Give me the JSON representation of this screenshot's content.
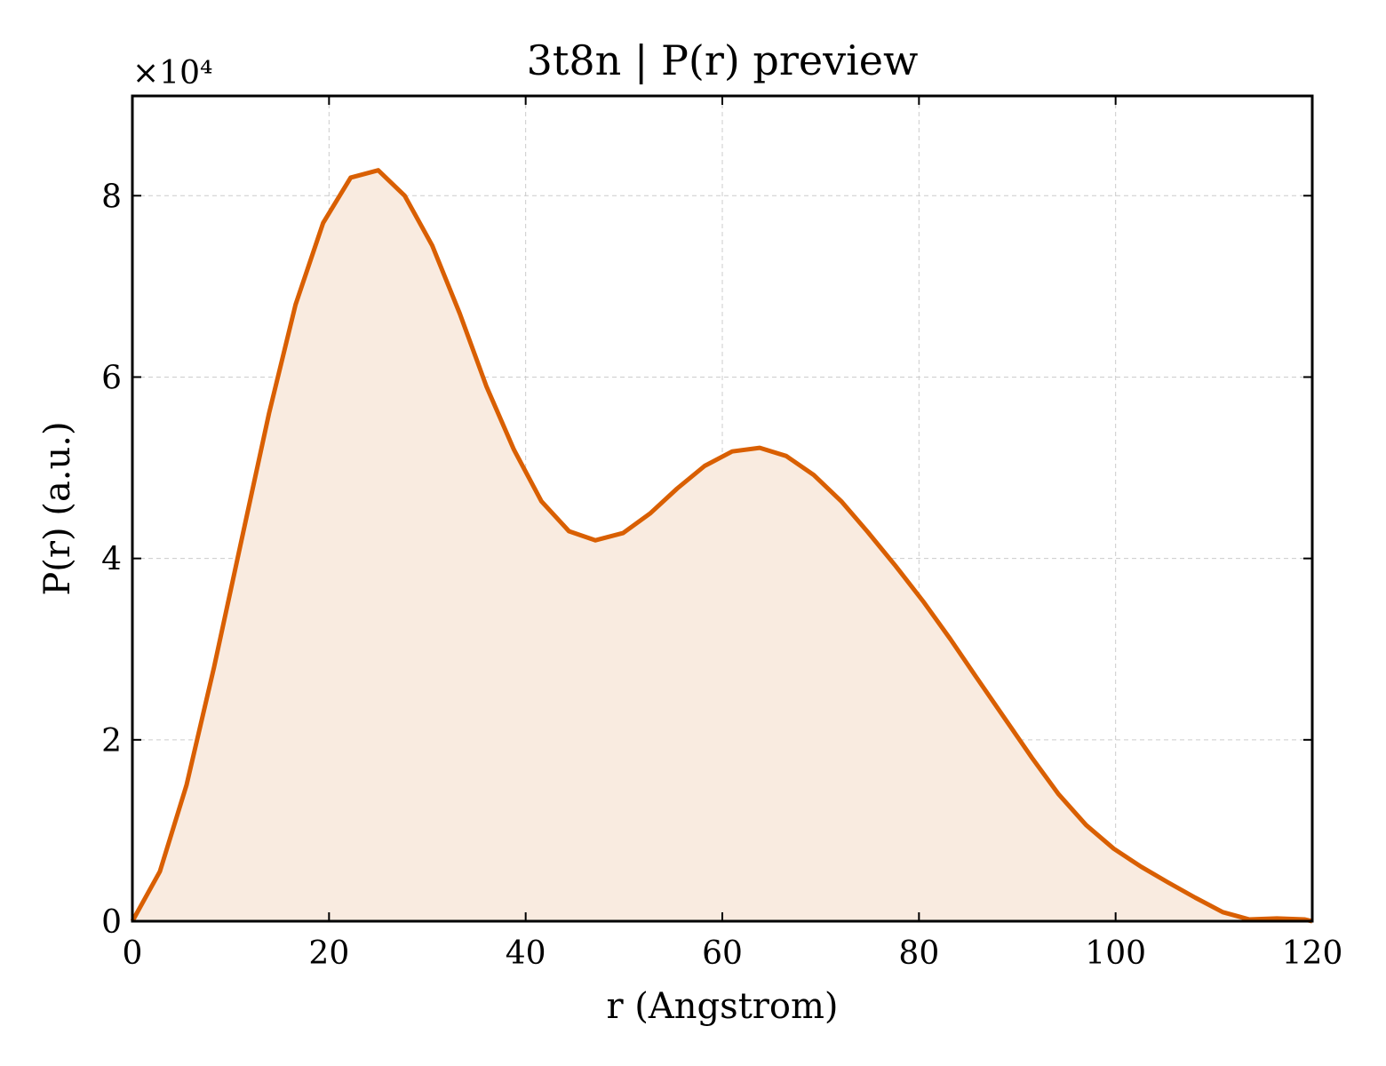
{
  "chart_data": {
    "type": "area",
    "title": "3t8n | P(r) preview",
    "xlabel": "r (Angstrom)",
    "ylabel": "P(r) (a.u.)",
    "y_offset_label": "×10⁴",
    "xlim": [
      0,
      120
    ],
    "ylim": [
      0,
      91000
    ],
    "xticks": [
      0,
      20,
      40,
      60,
      80,
      100,
      120
    ],
    "xtick_labels": [
      "0",
      "20",
      "40",
      "60",
      "80",
      "100",
      "120"
    ],
    "yticks": [
      0,
      20000,
      40000,
      60000,
      80000
    ],
    "ytick_labels": [
      "0",
      "2",
      "4",
      "6",
      "8"
    ],
    "grid": true,
    "series": [
      {
        "x": [
          0,
          2.8,
          5.5,
          8.3,
          11.1,
          13.9,
          16.6,
          19.4,
          22.2,
          25.0,
          27.7,
          30.5,
          33.3,
          36.0,
          38.8,
          41.6,
          44.4,
          47.1,
          49.9,
          52.7,
          55.4,
          58.2,
          61.0,
          63.8,
          66.5,
          69.3,
          72.1,
          74.8,
          77.6,
          80.4,
          83.2,
          85.9,
          88.7,
          91.5,
          94.2,
          97.0,
          99.8,
          102.6,
          105.3,
          108.1,
          110.9,
          113.6,
          116.4,
          119.2,
          120
        ],
        "y": [
          0,
          5500,
          15000,
          28000,
          42000,
          56000,
          68000,
          77000,
          82000,
          82800,
          80000,
          74500,
          67000,
          59000,
          52000,
          46300,
          43000,
          42000,
          42800,
          45000,
          47700,
          50200,
          51800,
          52200,
          51300,
          49200,
          46300,
          42900,
          39200,
          35300,
          31100,
          26800,
          22400,
          18000,
          14000,
          10600,
          8000,
          6000,
          4300,
          2600,
          1000,
          200,
          300,
          200,
          0
        ]
      }
    ],
    "colors": {
      "line": "#d95f02",
      "fill": "#f9ebe0",
      "frame": "#000000",
      "grid": "#cccccc"
    }
  }
}
